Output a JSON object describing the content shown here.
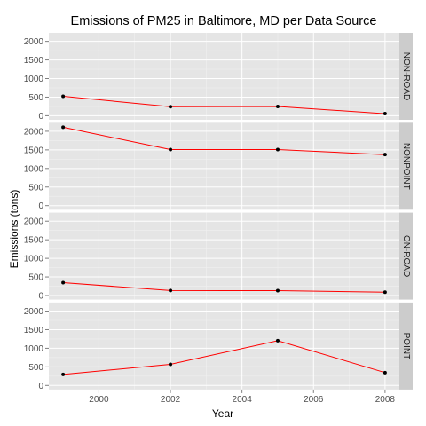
{
  "chart_data": {
    "type": "line",
    "title": "Emissions of PM25 in Baltimore, MD per Data Source",
    "xlabel": "Year",
    "ylabel": "Emissions (tons)",
    "x": [
      1999,
      2002,
      2005,
      2008
    ],
    "xlim": [
      1998.6,
      2008.4
    ],
    "ylim": [
      -110,
      2230
    ],
    "xticks": [
      2000,
      2002,
      2004,
      2006,
      2008
    ],
    "yticks": [
      0,
      500,
      1000,
      1500,
      2000
    ],
    "grid": true,
    "facet": "rows",
    "line_color": "#ff0000",
    "point_color": "#000000",
    "panel_color": "#e5e5e5",
    "strip_color": "#cccccc",
    "series": [
      {
        "name": "NON-ROAD",
        "values": [
          522.9,
          240.8,
          248.9,
          55.8
        ]
      },
      {
        "name": "NONPOINT",
        "values": [
          2107.6,
          1509.5,
          1509.5,
          1373.2
        ]
      },
      {
        "name": "ON-ROAD",
        "values": [
          346.8,
          134.3,
          130.4,
          88.3
        ]
      },
      {
        "name": "POINT",
        "values": [
          296.8,
          569.3,
          1202.5,
          344.98
        ]
      }
    ]
  }
}
